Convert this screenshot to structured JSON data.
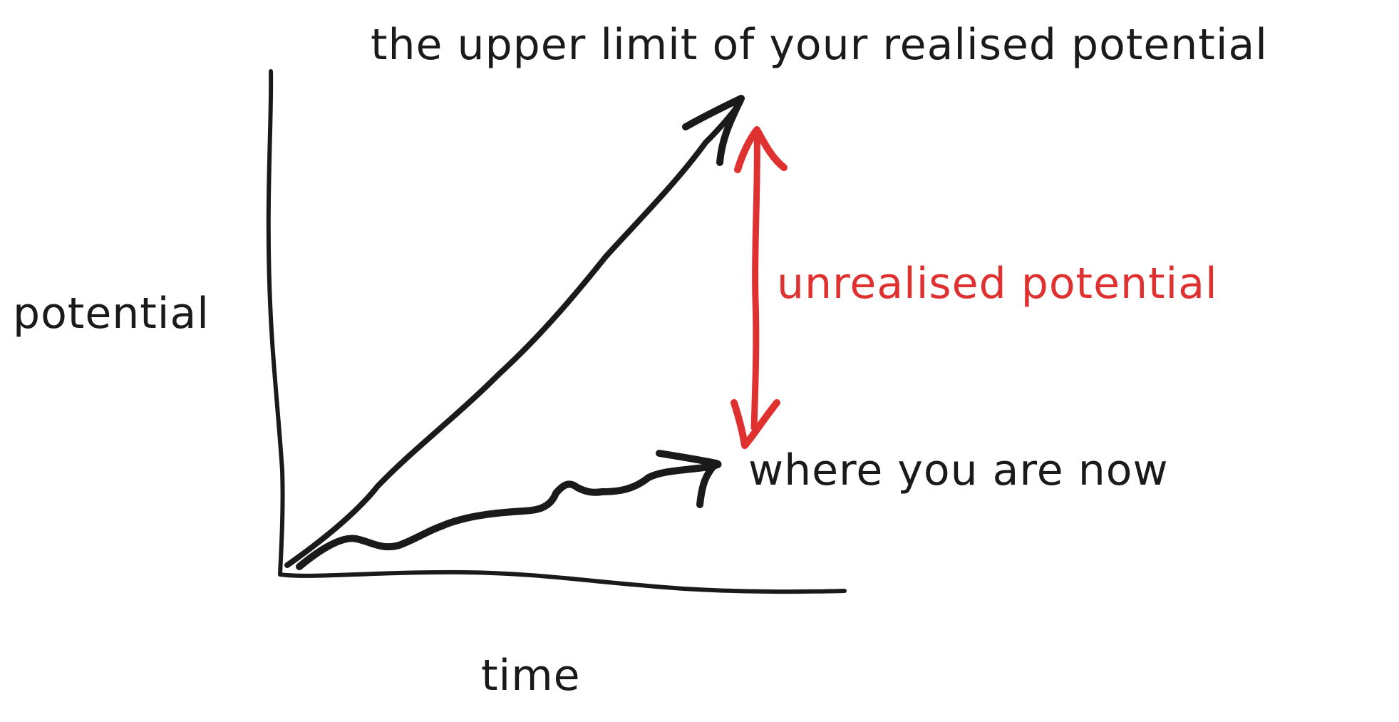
{
  "labels": {
    "upper_limit": "the upper limit of your realised potential",
    "potential_axis": "potential",
    "unrealised": "unrealised potential",
    "where_now": "where you are now",
    "time_axis": "time"
  },
  "colors": {
    "ink": "#1a1a1a",
    "accent": "#e03131",
    "background": "#ffffff"
  }
}
